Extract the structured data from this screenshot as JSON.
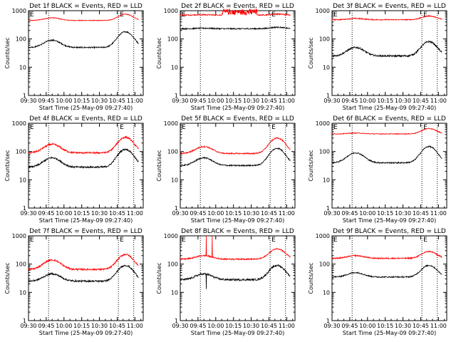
{
  "chart_data": {
    "type": "line",
    "layout": "3x3 grid",
    "x_tick_labels": [
      "09:30",
      "09:45",
      "10:00",
      "10:15",
      "10:30",
      "10:45",
      "11:00"
    ],
    "y_tick_labels": [
      "1",
      "10",
      "100",
      "1000"
    ],
    "ylabel": "Counts/sec",
    "xlabel": "Start Time (25-May-09 09:27:40)",
    "y_scale": "log",
    "ylim": [
      1,
      1000
    ],
    "xlim_minutes_after_0930": [
      0,
      97
    ],
    "dotted_vertical_lines_minutes_after_0930": [
      17,
      76,
      89
    ],
    "E_markers_minutes_after_0930": [
      0,
      76
    ],
    "series_colors": {
      "events": "#000000",
      "lld": "#ff0000"
    },
    "panels": [
      {
        "title": "Det 1f BLACK = Events, RED = LLD",
        "events": {
          "base": 50,
          "peak1": 90,
          "peak2": 180,
          "noise": 0.05
        },
        "lld": {
          "base": 450,
          "peak1": 560,
          "peak2": 750,
          "noise": 0.03
        }
      },
      {
        "title": "Det 2f BLACK = Events, RED = LLD",
        "events": {
          "base": 230,
          "peak1": 240,
          "peak2": 260,
          "noise": 0.05
        },
        "lld": {
          "base": 700,
          "peak1": 720,
          "peak2": 760,
          "noise": 0.05,
          "burst": [
            35,
            65,
            1000
          ]
        }
      },
      {
        "title": "Det 3f BLACK = Events, RED = LLD",
        "events": {
          "base": 25,
          "peak1": 50,
          "peak2": 80,
          "noise": 0.07
        },
        "lld": {
          "base": 480,
          "peak1": 530,
          "peak2": 650,
          "noise": 0.04
        }
      },
      {
        "title": "Det 4f BLACK = Events, RED = LLD",
        "events": {
          "base": 28,
          "peak1": 60,
          "peak2": 120,
          "noise": 0.07
        },
        "lld": {
          "base": 90,
          "peak1": 180,
          "peak2": 320,
          "noise": 0.07
        }
      },
      {
        "title": "Det 5f BLACK = Events, RED = LLD",
        "events": {
          "base": 32,
          "peak1": 60,
          "peak2": 130,
          "noise": 0.05
        },
        "lld": {
          "base": 85,
          "peak1": 150,
          "peak2": 300,
          "noise": 0.05
        }
      },
      {
        "title": "Det 6f BLACK = Events, RED = LLD",
        "events": {
          "base": 40,
          "peak1": 90,
          "peak2": 150,
          "noise": 0.05
        },
        "lld": {
          "base": 420,
          "peak1": 450,
          "peak2": 650,
          "noise": 0.03
        }
      },
      {
        "title": "Det 7f BLACK = Events, RED = LLD",
        "events": {
          "base": 25,
          "peak1": 45,
          "peak2": 90,
          "noise": 0.07
        },
        "lld": {
          "base": 65,
          "peak1": 140,
          "peak2": 220,
          "noise": 0.07
        }
      },
      {
        "title": "Det 8f BLACK = Events, RED = LLD",
        "events": {
          "base": 28,
          "peak1": 45,
          "peak2": 90,
          "noise": 0.08,
          "spike": [
            22,
            13
          ]
        },
        "lld": {
          "base": 150,
          "peak1": 200,
          "peak2": 350,
          "noise": 0.05,
          "spike": [
            22,
            1000
          ],
          "spike2": [
            27,
            1000
          ]
        }
      },
      {
        "title": "Det 9f BLACK = Events, RED = LLD",
        "events": {
          "base": 35,
          "peak1": 50,
          "peak2": 90,
          "noise": 0.05
        },
        "lld": {
          "base": 160,
          "peak1": 200,
          "peak2": 280,
          "noise": 0.05
        }
      }
    ]
  }
}
